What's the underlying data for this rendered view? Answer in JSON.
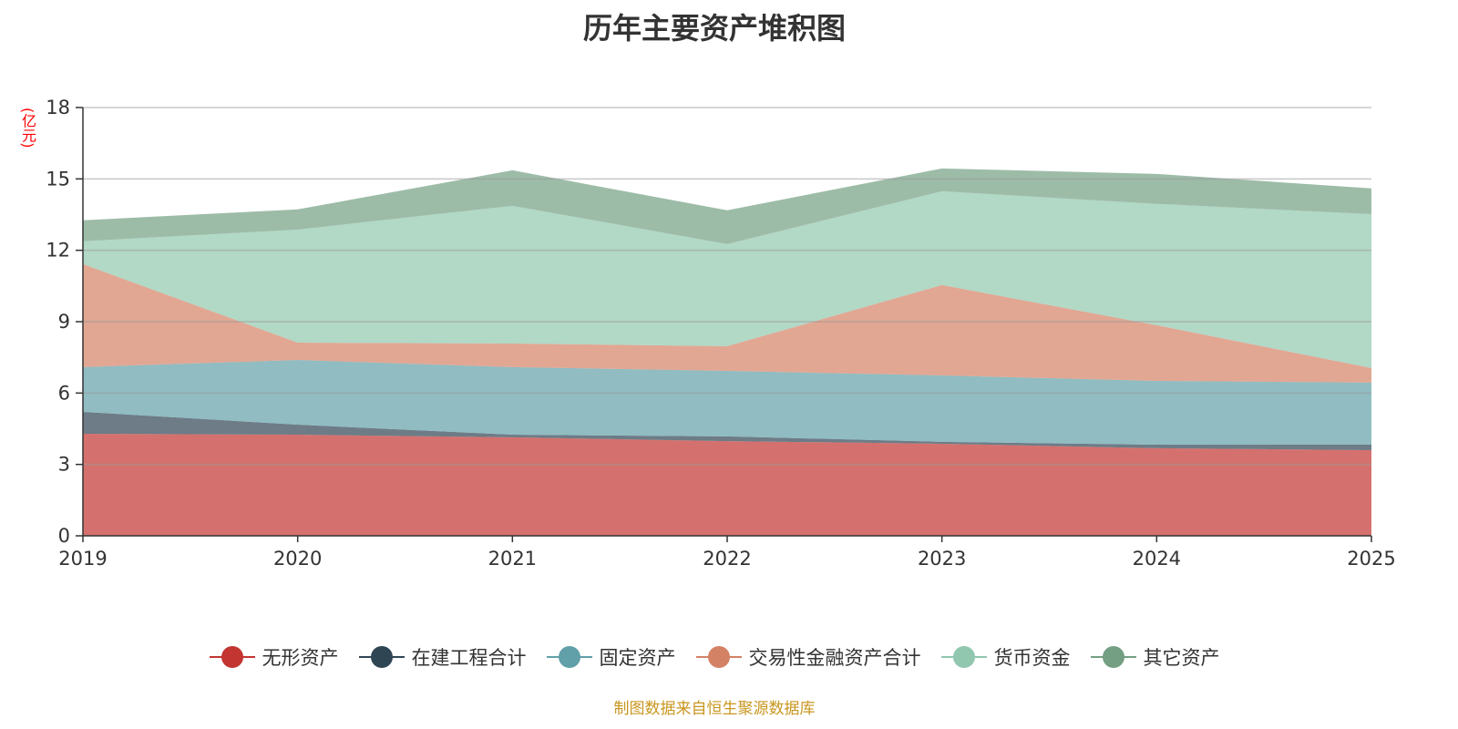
{
  "title": "历年主要资产堆积图",
  "y_unit": "(亿元)",
  "source": "制图数据来自恒生聚源数据库",
  "chart_data": {
    "type": "area",
    "stacked": true,
    "title": "历年主要资产堆积图",
    "ylabel": "(亿元)",
    "categories": [
      "2019",
      "2020",
      "2021",
      "2022",
      "2023",
      "2024",
      "2025"
    ],
    "ylim": [
      0,
      18
    ],
    "yticks": [
      0,
      3,
      6,
      9,
      12,
      15,
      18
    ],
    "grid": true,
    "legend_position": "bottom",
    "series": [
      {
        "name": "无形资产",
        "color": "#c23531",
        "values": [
          4.29,
          4.25,
          4.14,
          3.98,
          3.87,
          3.68,
          3.6
        ]
      },
      {
        "name": "在建工程合计",
        "color": "#2f4554",
        "values": [
          0.92,
          0.42,
          0.11,
          0.2,
          0.08,
          0.15,
          0.23
        ]
      },
      {
        "name": "固定资产",
        "color": "#61a0a8",
        "values": [
          1.88,
          2.72,
          2.84,
          2.75,
          2.79,
          2.68,
          2.61
        ]
      },
      {
        "name": "交易性金融资产合计",
        "color": "#d48265",
        "values": [
          4.33,
          0.73,
          0.99,
          1.04,
          3.8,
          2.34,
          0.61
        ]
      },
      {
        "name": "货币资金",
        "color": "#91c7ae",
        "values": [
          0.96,
          4.75,
          5.79,
          4.29,
          3.94,
          5.1,
          6.47
        ]
      },
      {
        "name": "其它资产",
        "color": "#749f83",
        "values": [
          0.88,
          0.85,
          1.49,
          1.42,
          0.96,
          1.26,
          1.08
        ]
      }
    ]
  }
}
